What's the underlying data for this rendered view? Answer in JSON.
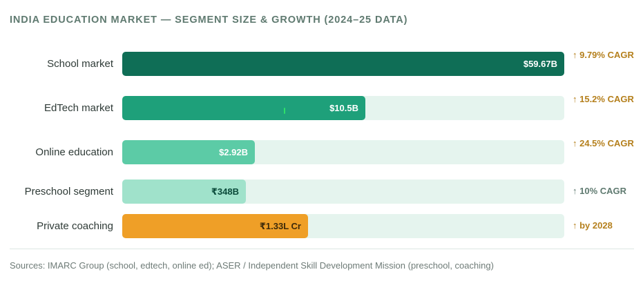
{
  "header": {
    "title": "INDIA EDUCATION MARKET — SEGMENT SIZE & GROWTH (2024–25 DATA)"
  },
  "chart_data": {
    "type": "bar",
    "orientation": "horizontal",
    "title": "INDIA EDUCATION MARKET — SEGMENT SIZE & GROWTH (2024–25 DATA)",
    "categories": [
      "School market",
      "EdTech market",
      "Online education",
      "Preschool segment",
      "Private coaching"
    ],
    "values": [
      1.0,
      0.55,
      0.3,
      0.28,
      0.42
    ],
    "value_labels": [
      "$59.67B",
      "$10.5B",
      "$2.92B",
      "₹348B",
      "₹1.33L Cr"
    ],
    "growth_labels": [
      "↑ 9.79% CAGR",
      "↑ 15.2% CAGR",
      "↑ 24.5% CAGR",
      "↑ 10% CAGR",
      "↑ by 2028"
    ],
    "colors": [
      "#0f6e56",
      "#1ea07a",
      "#5ccba6",
      "#a0e2cb",
      "#ef9f27"
    ],
    "value_text_colors": [
      "#ffffff",
      "#ffffff",
      "#ffffff",
      "#0a4a3a",
      "#3d2a0a"
    ],
    "growth_colors": [
      "#b5801d",
      "#b5801d",
      "#b5801d",
      "#5f7a70",
      "#b5801d"
    ],
    "track_color": "#e5f4ee",
    "grid": false,
    "legend": "none"
  },
  "footer": {
    "sources": "Sources: IMARC Group (school, edtech, online ed); ASER / Independent Skill Development Mission (preschool, coaching)"
  }
}
